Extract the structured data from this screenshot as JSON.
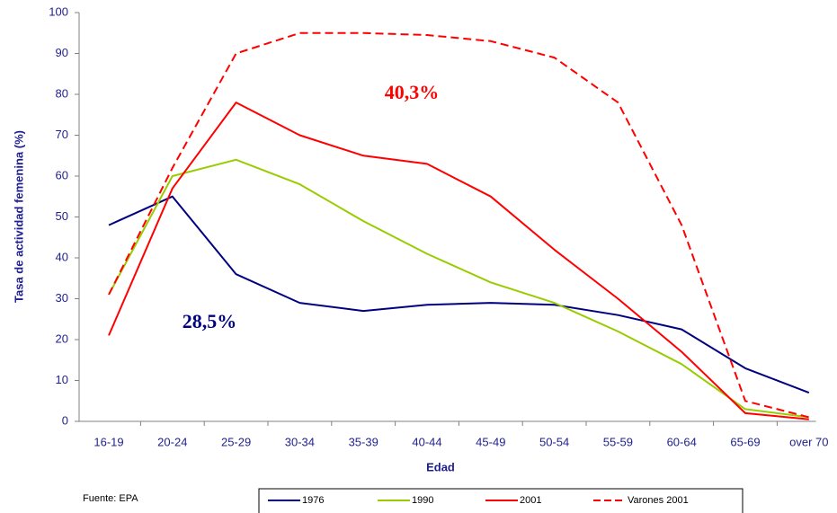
{
  "chart_data": {
    "type": "line",
    "y_label": "Tasa de actividad femenina (%)",
    "x_label": "Edad",
    "source": "Fuente: EPA",
    "annotations": [
      "40,3%",
      "28,5%"
    ],
    "categories": [
      "16-19",
      "20-24",
      "25-29",
      "30-34",
      "35-39",
      "40-44",
      "45-49",
      "50-54",
      "55-59",
      "60-64",
      "65-69",
      "over 70"
    ],
    "ylim": [
      0,
      100
    ],
    "yticks": [
      0,
      10,
      20,
      30,
      40,
      50,
      60,
      70,
      80,
      90,
      100
    ],
    "legend": "bottom",
    "series": [
      {
        "name": "1976",
        "color": "#000080",
        "dash": false,
        "values": [
          48,
          55,
          36,
          29,
          27,
          28.5,
          29,
          28.5,
          26,
          22.5,
          13,
          7
        ]
      },
      {
        "name": "1990",
        "color": "#99cc00",
        "dash": false,
        "values": [
          31,
          60,
          64,
          58,
          49,
          41,
          34,
          29,
          22,
          14,
          3,
          1
        ]
      },
      {
        "name": "2001",
        "color": "#ff0000",
        "dash": false,
        "values": [
          21,
          57,
          78,
          70,
          65,
          63,
          55,
          42,
          30,
          17,
          2,
          0.5
        ]
      },
      {
        "name": "Varones 2001",
        "color": "#ff0000",
        "dash": true,
        "values": [
          31,
          62,
          90,
          95,
          95,
          94.5,
          93,
          89,
          78,
          48,
          5,
          1
        ]
      }
    ]
  }
}
